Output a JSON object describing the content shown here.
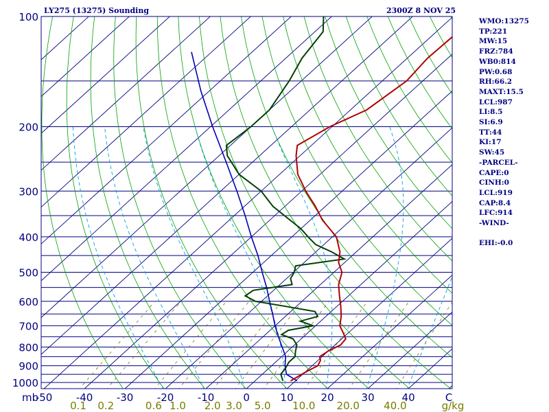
{
  "header": {
    "station": "LY275 (13275) Sounding",
    "datetime": "2300Z  8 NOV 25"
  },
  "stats": [
    "WMO:13275",
    "TP:221",
    "MW:15",
    "FRZ:784",
    "WB0:814",
    "PW:0.68",
    "RH:66.2",
    "MAXT:15.5",
    "LCL:987",
    "LI:8.5",
    "SI:6.9",
    "TT:44",
    "KI:17",
    "SW:45",
    "-PARCEL-",
    "CAPE:0",
    "CINH:0",
    "LCL:919",
    "CAP:8.4",
    "LFC:914",
    "-WIND-",
    "",
    "EHI:-0.0"
  ],
  "colors": {
    "isobar": "#000080",
    "isotherm": "#000080",
    "dry_adiabat": "#00a000",
    "moist_adiabat": "#00a0e0",
    "mixing_ratio": "#807000",
    "temperature": "#b00000",
    "dewpoint": "#004000",
    "parcel": "#0000b0"
  },
  "chart_data": {
    "type": "line",
    "title": "LY275 (13275) Sounding",
    "subtitle": "2300Z  8 NOV 25",
    "diagram": "skew-T log-P",
    "ylabel": "mb",
    "xlabel": "°C",
    "xunit_label": "C",
    "mixing_ratio_unit": "g/kg",
    "pressure_ticks": [
      100,
      200,
      300,
      400,
      500,
      600,
      700,
      800,
      900,
      1000
    ],
    "isobars": [
      100,
      150,
      200,
      250,
      300,
      350,
      400,
      450,
      500,
      550,
      600,
      650,
      700,
      750,
      800,
      850,
      900,
      950,
      1000,
      1050
    ],
    "temperature_ticks": [
      -50,
      -40,
      -30,
      -20,
      -10,
      0,
      10,
      20,
      30,
      40,
      50
    ],
    "temperature_tick_labels": [
      "-50",
      "-40",
      "-30",
      "-20",
      "-10",
      "0",
      "10",
      "20",
      "30",
      "40",
      "C"
    ],
    "mixing_ratio_labels": [
      {
        "text": "0.1",
        "value": 0.1
      },
      {
        "text": "0.2",
        "value": 0.2
      },
      {
        "text": "0.6",
        "value": 0.6
      },
      {
        "text": "1.0",
        "value": 1.0
      },
      {
        "text": "2.0",
        "value": 2.0
      },
      {
        "text": "3.0",
        "value": 3.0
      },
      {
        "text": "5.0",
        "value": 5.0
      },
      {
        "text": "10.0",
        "value": 10.0
      },
      {
        "text": "20.0",
        "value": 20.0
      },
      {
        "text": "40.0",
        "value": 40.0
      }
    ],
    "ylim": [
      1050,
      100
    ],
    "series": [
      {
        "name": "temperature",
        "pressure": [
          990,
          960,
          930,
          900,
          870,
          850,
          820,
          790,
          760,
          730,
          700,
          660,
          620,
          580,
          540,
          500,
          470,
          440,
          400,
          360,
          330,
          300,
          270,
          240,
          225,
          200,
          180,
          150,
          130,
          110,
          100
        ],
        "temp": [
          8.8,
          9.5,
          10.3,
          11.4,
          10.6,
          9.4,
          10.0,
          11.4,
          11.0,
          8.6,
          6.0,
          3.8,
          1.0,
          -2.2,
          -5.5,
          -8.0,
          -11.5,
          -14.0,
          -19.0,
          -27.0,
          -32.5,
          -39.0,
          -45.5,
          -51.0,
          -53.5,
          -50.5,
          -46.0,
          -44.0,
          -45.0,
          -44.6,
          -46.5
        ]
      },
      {
        "name": "dewpoint",
        "pressure": [
          990,
          950,
          910,
          880,
          850,
          820,
          790,
          760,
          740,
          720,
          700,
          680,
          660,
          640,
          620,
          600,
          580,
          560,
          540,
          520,
          500,
          480,
          460,
          440,
          420,
          400,
          380,
          360,
          330,
          300,
          270,
          240,
          225,
          200,
          180,
          150,
          130,
          110,
          100
        ],
        "temp": [
          6.9,
          4.6,
          4.0,
          3.3,
          3.3,
          1.9,
          0.6,
          -2.0,
          -6.0,
          -5.5,
          -0.6,
          -5.0,
          -2.0,
          -4.0,
          -12.5,
          -21.5,
          -25.5,
          -25.0,
          -17.0,
          -19.0,
          -19.8,
          -21.2,
          -11.0,
          -16.0,
          -22.0,
          -26.0,
          -30.0,
          -35.0,
          -43.0,
          -50.0,
          -60.0,
          -68.0,
          -71.0,
          -70.0,
          -70.0,
          -73.0,
          -76.0,
          -78.0,
          -82.0
        ]
      },
      {
        "name": "parcel",
        "pressure": [
          990,
          950,
          900,
          850,
          800,
          750,
          700,
          650,
          600,
          550,
          500,
          450,
          400,
          350,
          300,
          250,
          200,
          160,
          125
        ],
        "temp": [
          10.4,
          6.0,
          3.3,
          1.0,
          -2.5,
          -6.2,
          -10.0,
          -13.8,
          -18.0,
          -22.5,
          -27.7,
          -33.3,
          -40.0,
          -47.3,
          -56.0,
          -66.5,
          -79.5,
          -92.0,
          -105.0
        ]
      }
    ]
  }
}
